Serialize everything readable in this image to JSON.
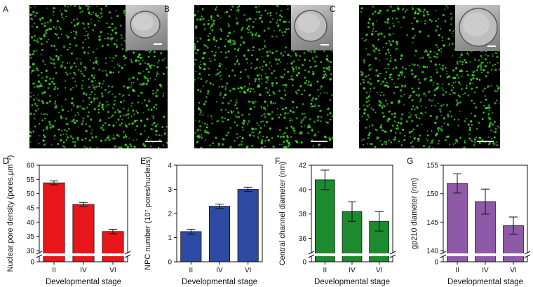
{
  "micrographs": [
    {
      "letter": "A",
      "dot_color": "#3fcf2e",
      "seed": 11
    },
    {
      "letter": "B",
      "dot_color": "#3fcf2e",
      "seed": 23
    },
    {
      "letter": "C",
      "dot_color": "#3fcf2e",
      "seed": 37
    }
  ],
  "chart_data": [
    {
      "panel": "D",
      "type": "bar",
      "categories": [
        "II",
        "IV",
        "VI"
      ],
      "values": [
        53.8,
        46.2,
        36.7
      ],
      "errors": [
        0.7,
        0.7,
        0.8
      ],
      "xlabel": "Developmental stage",
      "ylabel": "Nuclear pore density (pores.µm⁻²)",
      "ylim": [
        30,
        60
      ],
      "yticks": [
        30,
        35,
        40,
        45,
        50,
        55,
        60
      ],
      "broken_axis_tick": "0",
      "color": "#e8161b"
    },
    {
      "panel": "E",
      "type": "bar",
      "categories": [
        "II",
        "IV",
        "VI"
      ],
      "values": [
        1.25,
        2.3,
        3.0
      ],
      "errors": [
        0.1,
        0.09,
        0.09
      ],
      "xlabel": "Developmental stage",
      "ylabel": "NPC number (10⁷ pores/nucleus)",
      "ylim": [
        0,
        4
      ],
      "yticks": [
        0,
        1,
        2,
        3,
        4
      ],
      "color": "#2e4aa3"
    },
    {
      "panel": "F",
      "type": "bar",
      "categories": [
        "II",
        "IV",
        "VI"
      ],
      "values": [
        40.8,
        38.2,
        37.4
      ],
      "errors": [
        0.8,
        0.8,
        0.8
      ],
      "xlabel": "Developmental stage",
      "ylabel": "Central channel diameter (nm)",
      "ylim": [
        35,
        42
      ],
      "yticks": [
        36,
        38,
        40,
        42
      ],
      "broken_axis_tick": "0",
      "color": "#1e8a2f"
    },
    {
      "panel": "G",
      "type": "bar",
      "categories": [
        "II",
        "IV",
        "VI"
      ],
      "values": [
        151.8,
        148.6,
        144.4
      ],
      "errors": [
        1.7,
        2.2,
        1.5
      ],
      "xlabel": "Developmental stage",
      "ylabel": "gp210 diameter (nm)",
      "ylim": [
        140,
        155
      ],
      "yticks": [
        140,
        145,
        150,
        155
      ],
      "broken_axis_tick": "0",
      "color": "#8e5aa8"
    }
  ]
}
